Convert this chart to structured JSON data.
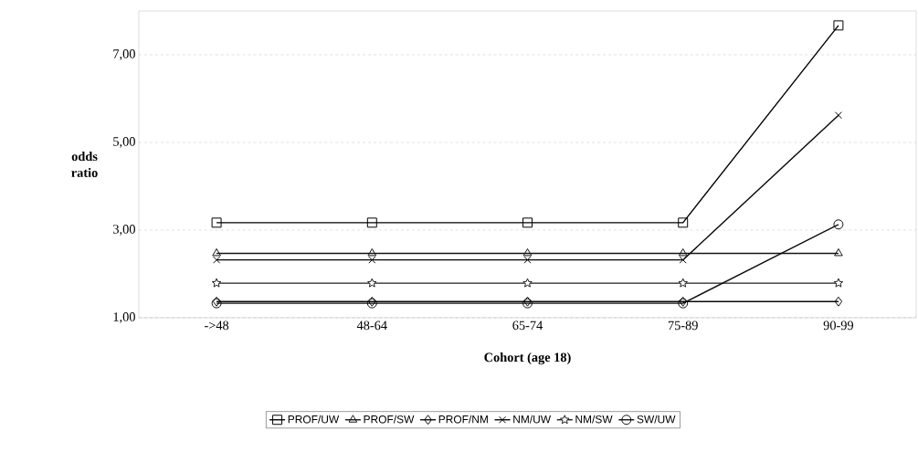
{
  "chart_data": {
    "type": "line",
    "xlabel": "Cohort (age 18)",
    "ylabel": "odds ratio",
    "categories": [
      "->48",
      "48-64",
      "65-74",
      "75-89",
      "90-99"
    ],
    "series": [
      {
        "name": "PROF/UW",
        "color": "#000000",
        "marker": "square",
        "values": [
          3.17,
          3.17,
          3.17,
          3.17,
          7.67
        ]
      },
      {
        "name": "PROF/SW",
        "color": "#141414",
        "marker": "triangle",
        "values": [
          2.47,
          2.47,
          2.47,
          2.47,
          2.47
        ]
      },
      {
        "name": "PROF/NM",
        "color": "#0a0a0a",
        "marker": "diamond",
        "values": [
          1.37,
          1.37,
          1.37,
          1.37,
          1.37
        ]
      },
      {
        "name": "NM/UW",
        "color": "#050505",
        "marker": "cross",
        "values": [
          2.32,
          2.32,
          2.32,
          2.32,
          5.62
        ]
      },
      {
        "name": "NM/SW",
        "color": "#1e1e1e",
        "marker": "star",
        "values": [
          1.79,
          1.79,
          1.79,
          1.79,
          1.79
        ]
      },
      {
        "name": "SW/UW",
        "color": "#0f0f0f",
        "marker": "circle",
        "values": [
          1.33,
          1.33,
          1.33,
          1.33,
          3.13
        ]
      }
    ],
    "ylim": [
      1,
      8
    ],
    "yticks": [
      {
        "value": 1,
        "label": "1,00"
      },
      {
        "value": 3,
        "label": "3,00"
      },
      {
        "value": 5,
        "label": "5,00"
      },
      {
        "value": 7,
        "label": "7,00"
      }
    ],
    "grid": "y",
    "legend": "bottom",
    "line_style": "solid"
  }
}
